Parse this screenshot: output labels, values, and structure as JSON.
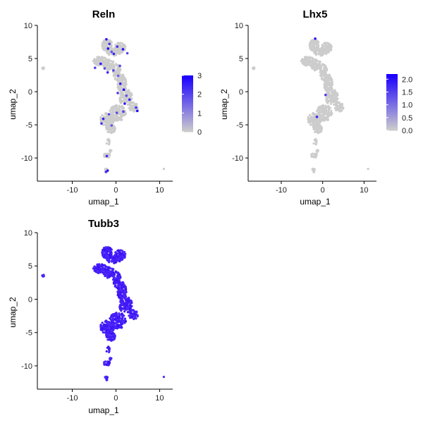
{
  "chart_data": [
    {
      "type": "scatter",
      "title": "Reln",
      "xlabel": "umap_1",
      "ylabel": "umap_2",
      "xlim": [
        -18,
        13
      ],
      "ylim": [
        -13.5,
        10
      ],
      "x_ticks": [
        -10,
        0,
        10
      ],
      "y_ticks": [
        -10,
        -5,
        0,
        5,
        10
      ],
      "grid": false,
      "colorbar": {
        "min": 0,
        "max": 3,
        "ticks": [
          0,
          1,
          2,
          3
        ],
        "tick_labels": [
          "0",
          "1",
          "2",
          "3"
        ],
        "low_color": "#cccccc",
        "high_color": "#1a00ff",
        "placement": "right"
      },
      "expression_level": "sparse",
      "expressing_points": [
        {
          "x": -2.2,
          "y": 7.9,
          "v": 2.6
        },
        {
          "x": -1.5,
          "y": 7.2,
          "v": 2.2
        },
        {
          "x": -1.0,
          "y": 6.0,
          "v": 1.8
        },
        {
          "x": -1.8,
          "y": 6.5,
          "v": 2.9
        },
        {
          "x": 0.3,
          "y": 6.8,
          "v": 2.3
        },
        {
          "x": 1.6,
          "y": 6.4,
          "v": 2.8
        },
        {
          "x": 2.6,
          "y": 5.8,
          "v": 2.0
        },
        {
          "x": -0.5,
          "y": 5.7,
          "v": 2.5
        },
        {
          "x": -4.8,
          "y": 3.6,
          "v": 2.1
        },
        {
          "x": -3.5,
          "y": 4.2,
          "v": 2.7
        },
        {
          "x": -2.6,
          "y": 3.5,
          "v": 1.9
        },
        {
          "x": -1.9,
          "y": 2.9,
          "v": 2.4
        },
        {
          "x": -0.6,
          "y": 3.2,
          "v": 2.0
        },
        {
          "x": 0.5,
          "y": 2.4,
          "v": 1.7
        },
        {
          "x": 1.0,
          "y": 1.2,
          "v": 2.6
        },
        {
          "x": 1.8,
          "y": 0.3,
          "v": 2.9
        },
        {
          "x": 0.4,
          "y": -0.2,
          "v": 2.2
        },
        {
          "x": 2.4,
          "y": -0.6,
          "v": 1.8
        },
        {
          "x": 3.1,
          "y": -1.2,
          "v": 2.5
        },
        {
          "x": 2.0,
          "y": -1.8,
          "v": 2.8
        },
        {
          "x": 4.6,
          "y": -2.4,
          "v": 2.3
        },
        {
          "x": 4.9,
          "y": -2.9,
          "v": 2.9
        },
        {
          "x": 1.7,
          "y": -3.0,
          "v": 2.1
        },
        {
          "x": 0.2,
          "y": -3.2,
          "v": 1.9
        },
        {
          "x": -1.6,
          "y": -3.4,
          "v": 2.0
        },
        {
          "x": -2.9,
          "y": -4.1,
          "v": 2.6
        },
        {
          "x": -3.3,
          "y": -4.8,
          "v": 2.2
        },
        {
          "x": -1.0,
          "y": -5.1,
          "v": 1.7
        },
        {
          "x": -2.1,
          "y": -9.7,
          "v": 2.4
        },
        {
          "x": -1.9,
          "y": -11.9,
          "v": 2.7
        },
        {
          "x": -2.3,
          "y": -12.1,
          "v": 2.3
        },
        {
          "x": 0.9,
          "y": 3.9,
          "v": 2.0
        }
      ]
    },
    {
      "type": "scatter",
      "title": "Lhx5",
      "xlabel": "umap_1",
      "ylabel": "umap_2",
      "xlim": [
        -18,
        13
      ],
      "ylim": [
        -13.5,
        10
      ],
      "x_ticks": [
        -10,
        0,
        10
      ],
      "y_ticks": [
        -10,
        -5,
        0,
        5,
        10
      ],
      "grid": false,
      "colorbar": {
        "min": 0,
        "max": 2.2,
        "ticks": [
          0,
          0.5,
          1,
          1.5,
          2
        ],
        "tick_labels": [
          "0.0",
          "0.5",
          "1.0",
          "1.5",
          "2.0"
        ],
        "low_color": "#cccccc",
        "high_color": "#1a00ff",
        "placement": "right"
      },
      "expression_level": "none",
      "expressing_points": [
        {
          "x": -1.8,
          "y": 8.0,
          "v": 2.0
        },
        {
          "x": 0.7,
          "y": -0.5,
          "v": 1.6
        },
        {
          "x": -1.4,
          "y": -3.8,
          "v": 1.8
        }
      ]
    },
    {
      "type": "scatter",
      "title": "Tubb3",
      "xlabel": "umap_1",
      "ylabel": "umap_2",
      "xlim": [
        -18,
        13
      ],
      "ylim": [
        -13.5,
        10
      ],
      "x_ticks": [
        -10,
        0,
        10
      ],
      "y_ticks": [
        -10,
        -5,
        0,
        5,
        10
      ],
      "grid": false,
      "colorbar": null,
      "expression_level": "all",
      "expressing_points": []
    }
  ]
}
